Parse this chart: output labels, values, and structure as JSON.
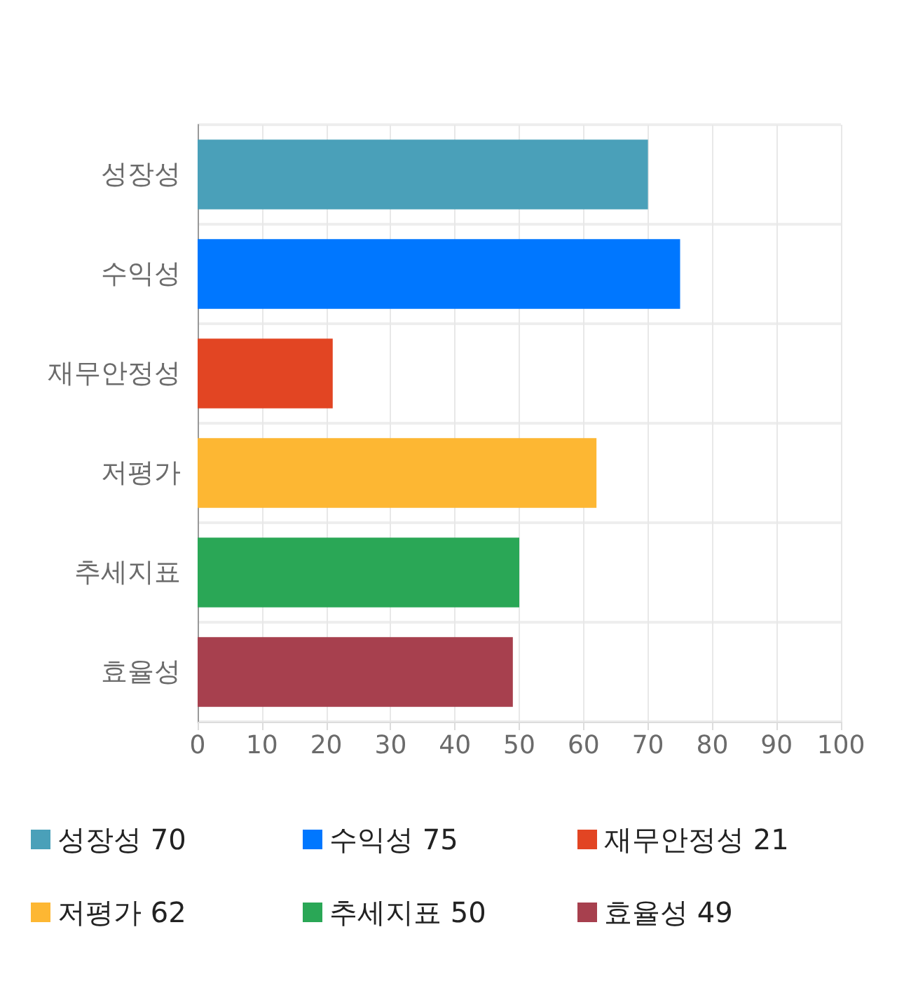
{
  "chart_data": {
    "type": "bar",
    "orientation": "horizontal",
    "categories": [
      "성장성",
      "수익성",
      "재무안정성",
      "저평가",
      "추세지표",
      "효율성"
    ],
    "series": [
      {
        "name": "성장성 70",
        "color": "#4aa0b9",
        "values": [
          70,
          null,
          null,
          null,
          null,
          null
        ]
      },
      {
        "name": "수익성 75",
        "color": "#0077ff",
        "values": [
          null,
          75,
          null,
          null,
          null,
          null
        ]
      },
      {
        "name": "재무안정성 21",
        "color": "#e24523",
        "values": [
          null,
          null,
          21,
          null,
          null,
          null
        ]
      },
      {
        "name": "저평가 62",
        "color": "#fdb733",
        "values": [
          null,
          null,
          null,
          62,
          null,
          null
        ]
      },
      {
        "name": "추세지표 50",
        "color": "#2aa756",
        "values": [
          null,
          null,
          null,
          null,
          50,
          null
        ]
      },
      {
        "name": "효율성 49",
        "color": "#a7404e",
        "values": [
          null,
          null,
          null,
          null,
          null,
          49
        ]
      }
    ],
    "xlim": [
      0,
      100
    ],
    "xticks": [
      0,
      10,
      20,
      30,
      40,
      50,
      60,
      70,
      80,
      90,
      100
    ],
    "grid": true,
    "legend": "bottom"
  }
}
